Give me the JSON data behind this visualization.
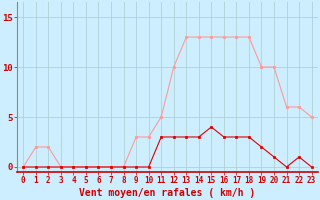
{
  "hours": [
    0,
    1,
    2,
    3,
    4,
    5,
    6,
    7,
    8,
    9,
    10,
    11,
    12,
    13,
    14,
    15,
    16,
    17,
    18,
    19,
    20,
    21,
    22,
    23
  ],
  "rafales": [
    0,
    2,
    2,
    0,
    0,
    0,
    0,
    0,
    0,
    3,
    3,
    5,
    10,
    13,
    13,
    13,
    13,
    13,
    13,
    10,
    10,
    6,
    6,
    5
  ],
  "moyen": [
    0,
    0,
    0,
    0,
    0,
    0,
    0,
    0,
    0,
    0,
    0,
    3,
    3,
    3,
    3,
    4,
    3,
    3,
    3,
    2,
    1,
    0,
    1,
    0
  ],
  "bg_color": "#cceeff",
  "grid_color": "#aacccc",
  "line_color_rafales": "#ff9999",
  "line_color_moyen": "#dd0000",
  "xlabel": "Vent moyen/en rafales ( km/h )",
  "xlabel_color": "#cc0000",
  "tick_color": "#cc0000",
  "yticks": [
    0,
    5,
    10,
    15
  ],
  "ylim": [
    -0.5,
    16.5
  ],
  "xlim": [
    -0.5,
    23.5
  ],
  "tick_fontsize": 5.5,
  "xlabel_fontsize": 7
}
